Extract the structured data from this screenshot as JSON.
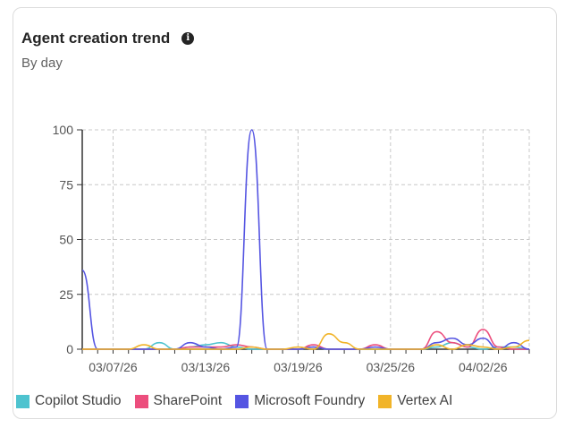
{
  "card": {
    "title": "Agent creation trend",
    "subtitle": "By day",
    "info_icon": "info-icon"
  },
  "chart_data": {
    "type": "line",
    "ylim": [
      0,
      100
    ],
    "y_ticks": [
      0,
      25,
      50,
      75,
      100
    ],
    "x_tick_labels": [
      "03/07/26",
      "03/13/26",
      "03/19/26",
      "03/25/26",
      "04/02/26"
    ],
    "grid": true,
    "legend_placement": "bottom",
    "x": [
      0,
      1,
      2,
      3,
      4,
      5,
      6,
      7,
      8,
      9,
      10,
      11,
      12,
      13,
      14,
      15,
      16,
      17,
      18,
      19,
      20,
      21,
      22,
      23,
      24,
      25,
      26,
      27,
      28,
      29
    ],
    "series": [
      {
        "name": "Copilot Studio",
        "color": "#4ec3cf",
        "values": [
          0,
          0,
          0,
          0,
          0,
          3,
          0,
          1,
          2,
          3,
          1,
          0,
          0,
          0,
          0,
          1,
          0,
          0,
          0,
          0,
          0,
          0,
          0,
          1,
          3,
          1,
          0,
          1,
          1,
          0
        ]
      },
      {
        "name": "SharePoint",
        "color": "#ec4e7d",
        "values": [
          0,
          0,
          0,
          0,
          0,
          0,
          0,
          1,
          1,
          1,
          2,
          1,
          0,
          0,
          0,
          2,
          0,
          0,
          0,
          2,
          0,
          0,
          0,
          8,
          3,
          1,
          9,
          1,
          0,
          0
        ]
      },
      {
        "name": "Microsoft Foundry",
        "color": "#5555e2",
        "values": [
          36,
          0,
          0,
          0,
          0,
          0,
          0,
          3,
          1,
          0,
          1,
          100,
          0,
          0,
          0,
          1,
          0,
          0,
          0,
          1,
          0,
          0,
          0,
          3,
          5,
          2,
          5,
          0,
          3,
          0
        ]
      },
      {
        "name": "Vertex AI",
        "color": "#f1b429",
        "values": [
          0,
          0,
          0,
          0,
          2,
          0,
          0,
          0,
          0,
          0,
          0,
          1,
          0,
          0,
          1,
          0,
          7,
          3,
          0,
          0,
          0,
          0,
          0,
          2,
          0,
          2,
          1,
          0,
          1,
          4
        ]
      }
    ]
  }
}
